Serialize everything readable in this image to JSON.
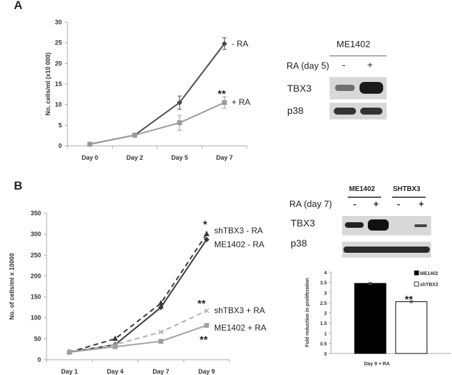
{
  "panel_labels": {
    "a": "A",
    "b": "B"
  },
  "chart_data": [
    {
      "type": "line",
      "panel": "A",
      "categories": [
        "Day 0",
        "Day 2",
        "Day 5",
        "Day 7"
      ],
      "ylabel": "No. cells/ml (x10 000)",
      "xlabel": "",
      "ylim": [
        0,
        30
      ],
      "yticks": [
        0,
        5,
        10,
        15,
        20,
        25,
        30
      ],
      "grid": false,
      "series": [
        {
          "name": "- RA",
          "values": [
            0.4,
            2.6,
            10.5,
            24.8
          ],
          "errors": [
            0.1,
            0.3,
            1.6,
            1.4
          ],
          "color": "#4a4a4a",
          "dash": false,
          "marker": "diamond"
        },
        {
          "name": "+ RA",
          "values": [
            0.4,
            2.6,
            5.6,
            10.5
          ],
          "errors": [
            0.1,
            0.3,
            1.8,
            1.4
          ],
          "color": "#9a9a9a",
          "dash": false,
          "marker": "square"
        }
      ],
      "annotations": [
        {
          "text": "**",
          "category": "Day 7",
          "series": "+ RA"
        }
      ]
    },
    {
      "type": "line",
      "panel": "B",
      "categories": [
        "Day 1",
        "Day 4",
        "Day 7",
        "Day 9"
      ],
      "ylabel": "No. of cells/ml x 10000",
      "xlabel": "",
      "ylim": [
        0,
        350
      ],
      "yticks": [
        0,
        50,
        100,
        150,
        200,
        250,
        300,
        350
      ],
      "grid": false,
      "series": [
        {
          "name": "shTBX3 - RA",
          "values": [
            18,
            50,
            135,
            300
          ],
          "color": "#3a3a3a",
          "dash": true,
          "marker": "triangle"
        },
        {
          "name": "ME1402 - RA",
          "values": [
            18,
            36,
            125,
            287
          ],
          "color": "#3a3a3a",
          "dash": false,
          "marker": "diamond"
        },
        {
          "name": "shTBX3 + RA",
          "values": [
            18,
            36,
            66,
            117
          ],
          "color": "#b0b0b0",
          "dash": true,
          "marker": "x"
        },
        {
          "name": "ME1402 + RA",
          "values": [
            18,
            31,
            44,
            82
          ],
          "color": "#a0a0a0",
          "dash": false,
          "marker": "square"
        }
      ],
      "annotations": [
        {
          "text": "*",
          "series": "shTBX3 - RA"
        },
        {
          "text": "**",
          "series": "shTBX3 + RA"
        },
        {
          "text": "**",
          "series": "ME1402 + RA"
        }
      ]
    },
    {
      "type": "bar",
      "panel": "B",
      "categories": [
        "Day 9 + RA"
      ],
      "xlabel": "Day 9 + RA",
      "ylabel": "Fold reduction in proliferation",
      "ylim": [
        0,
        4
      ],
      "yticks": [
        0,
        0.5,
        1,
        1.5,
        2,
        2.5,
        3,
        3.5,
        4
      ],
      "legend": "right",
      "series": [
        {
          "name": "ME1402",
          "values": [
            3.45
          ],
          "errors": [
            0.05
          ],
          "color": "#000000"
        },
        {
          "name": "shTBX3",
          "values": [
            2.55
          ],
          "errors": [
            0.05
          ],
          "color": "#ffffff"
        }
      ],
      "annotations": [
        {
          "text": "**",
          "series": "shTBX3"
        }
      ]
    }
  ],
  "blot_a": {
    "cell_line": "ME1402",
    "treatment": "RA (day 5)",
    "lanes": [
      "-",
      "+"
    ],
    "rows": [
      "TBX3",
      "p38"
    ]
  },
  "blot_b": {
    "cell_lines": [
      "ME1402",
      "SHTBX3"
    ],
    "treatment": "RA (day 7)",
    "lanes": [
      "-",
      "+",
      "-",
      "+"
    ],
    "rows": [
      "TBX3",
      "p38"
    ]
  }
}
